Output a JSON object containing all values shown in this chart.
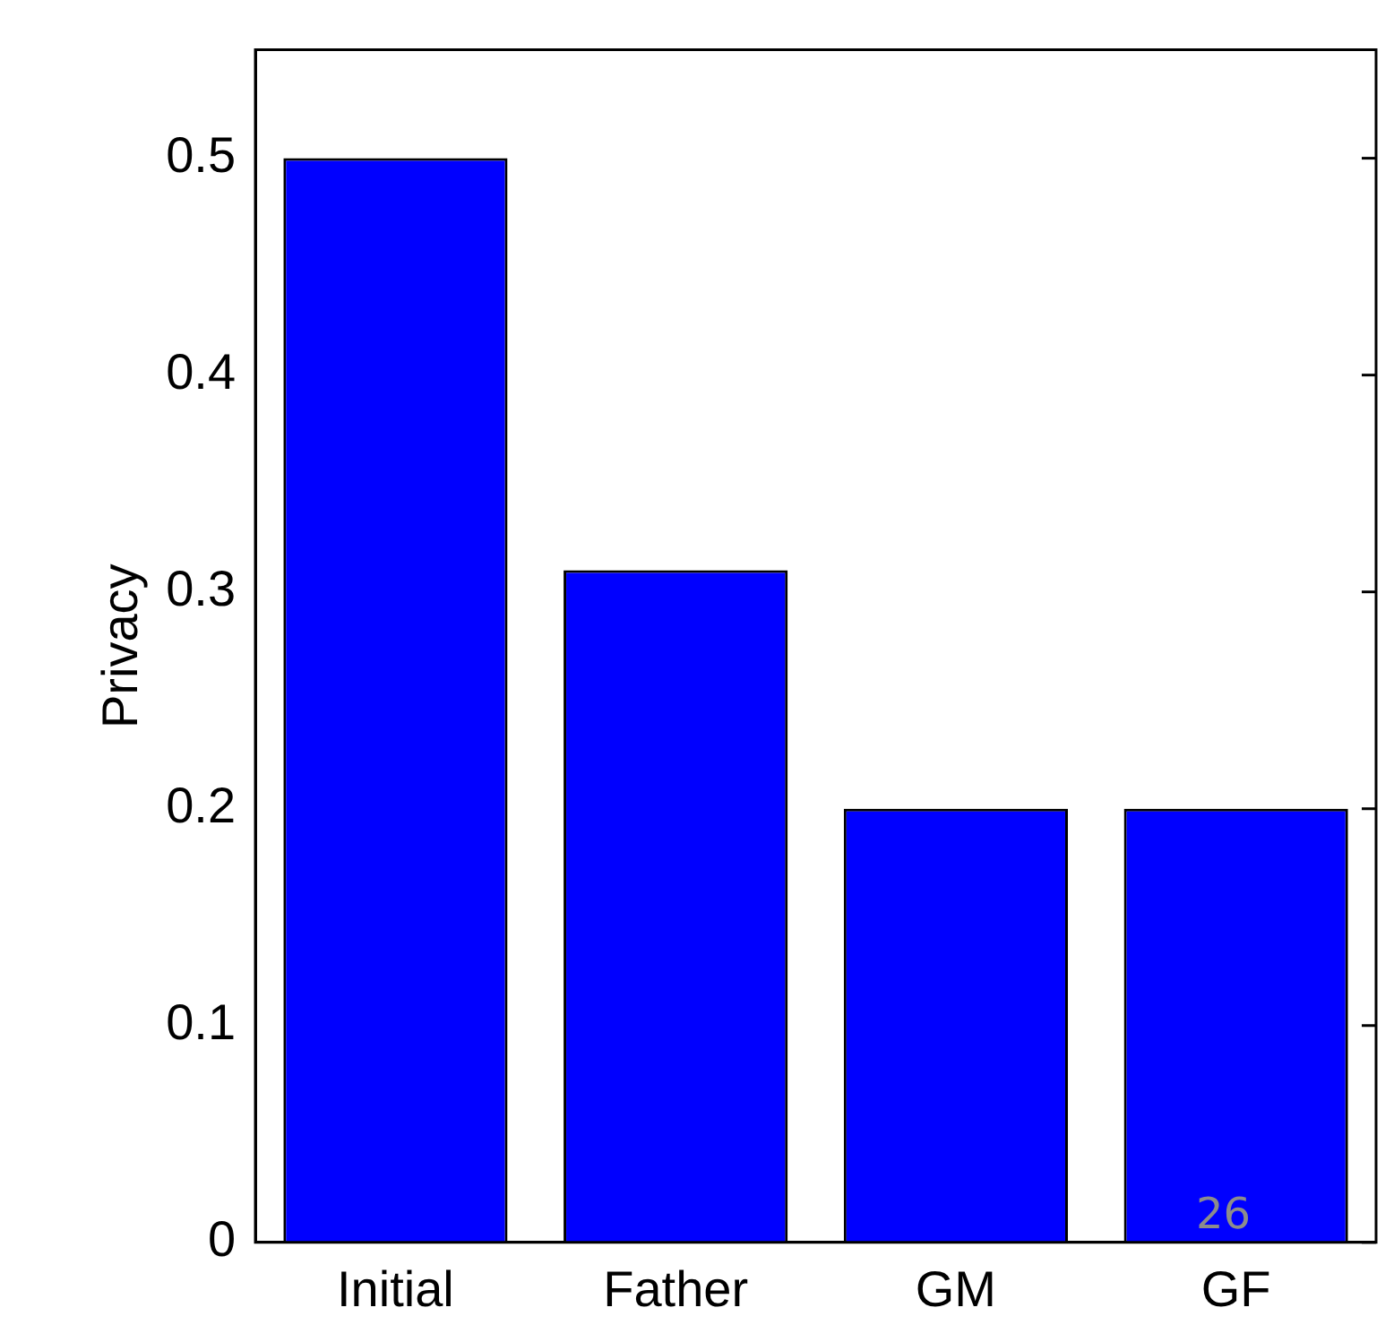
{
  "chart_data": {
    "type": "bar",
    "ylabel": "Privacy",
    "categories": [
      "Initial",
      "Father",
      "GM",
      "GF"
    ],
    "values": [
      0.5,
      0.31,
      0.2,
      0.2
    ],
    "color": "#0000ff",
    "ylim": [
      0,
      0.55
    ],
    "yticks": [
      0,
      0.1,
      0.2,
      0.3,
      0.4,
      0.5
    ],
    "grid": false,
    "legend": false,
    "annotations": [
      "26"
    ]
  }
}
